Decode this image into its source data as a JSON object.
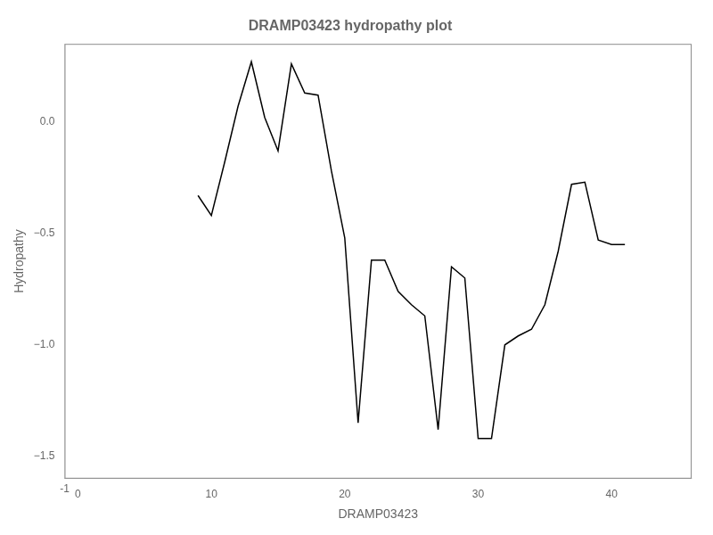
{
  "chart_data": {
    "type": "line",
    "title": "DRAMP03423 hydropathy plot",
    "xlabel": "DRAMP03423",
    "ylabel": "Hydropathy",
    "x": [
      9,
      10,
      11,
      12,
      13,
      14,
      15,
      16,
      17,
      18,
      19,
      20,
      21,
      22,
      23,
      24,
      25,
      26,
      27,
      28,
      29,
      30,
      31,
      32,
      33,
      34,
      35,
      36,
      37,
      38,
      39,
      40,
      41
    ],
    "values": [
      -0.33,
      -0.42,
      -0.18,
      0.07,
      0.27,
      0.02,
      -0.13,
      0.26,
      0.13,
      0.12,
      -0.22,
      -0.52,
      -1.35,
      -0.62,
      -0.62,
      -0.76,
      -0.82,
      -0.87,
      -1.38,
      -0.65,
      -0.7,
      -1.42,
      -1.42,
      -1.0,
      -0.96,
      -0.93,
      -0.82,
      -0.58,
      -0.28,
      -0.27,
      -0.53,
      -0.55,
      -0.55
    ],
    "color": "black",
    "xlim": [
      -1,
      46
    ],
    "ylim": [
      -1.6,
      0.35
    ],
    "xticks": [
      0,
      10,
      20,
      30,
      40
    ],
    "yticks": [
      {
        "value": -1.5,
        "label": "−1.5"
      },
      {
        "value": -1.0,
        "label": "−1.0"
      },
      {
        "value": -0.5,
        "label": "−0.5"
      },
      {
        "value": 0.0,
        "label": "0.0"
      }
    ],
    "grid": false,
    "annotations": [
      {
        "text": "-1",
        "x": -1
      }
    ]
  }
}
